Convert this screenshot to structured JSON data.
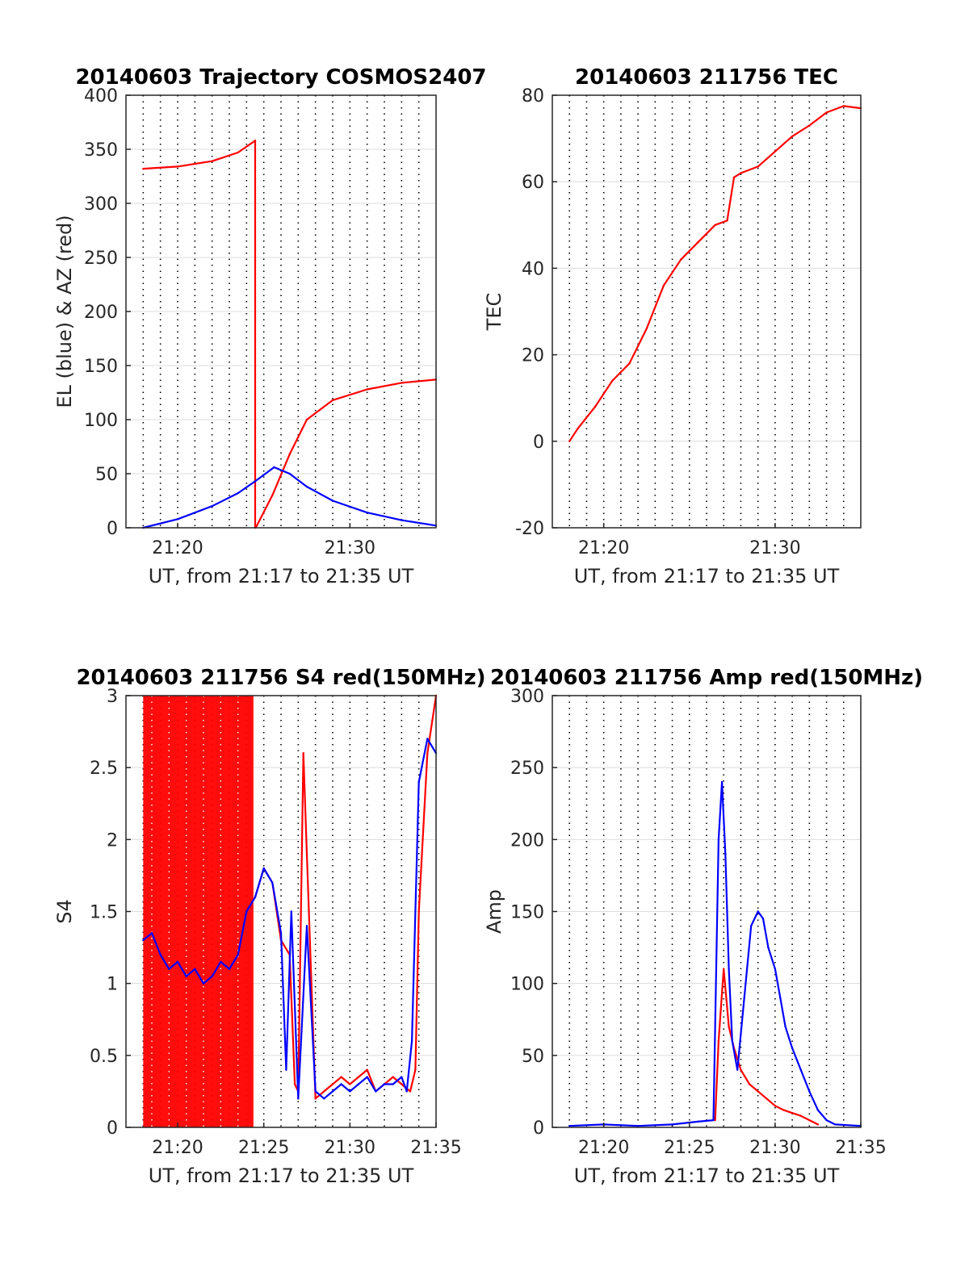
{
  "colors": {
    "red": "#ff0000",
    "blue": "#0000ff",
    "axis": "#262626",
    "grid": "#dcdcdc"
  },
  "chart_data": [
    {
      "id": "trajectory",
      "type": "line",
      "title": "20140603 Trajectory COSMOS2407",
      "xlabel": "UT, from 21:17 to 21:35 UT",
      "ylabel": "EL (blue) & AZ (red)",
      "x_unit": "minutes after 21:17",
      "xlim": [
        0,
        18
      ],
      "ylim": [
        0,
        400
      ],
      "xticks": [
        {
          "v": 3,
          "label": "21:20"
        },
        {
          "v": 13,
          "label": "21:30"
        }
      ],
      "yticks": [
        0,
        50,
        100,
        150,
        200,
        250,
        300,
        350,
        400
      ],
      "grid": true,
      "series": [
        {
          "color": "red",
          "x": [
            1,
            3,
            5,
            6.5,
            7.5,
            7.5,
            7.6,
            8.5,
            9.5,
            10.5,
            12,
            14,
            16,
            18
          ],
          "y": [
            332,
            334,
            339,
            347,
            358,
            0,
            2,
            30,
            68,
            100,
            118,
            128,
            134,
            137
          ]
        },
        {
          "color": "blue",
          "x": [
            1,
            3,
            5,
            6.5,
            7.5,
            8.6,
            9.5,
            10.5,
            12,
            14,
            16,
            18
          ],
          "y": [
            0,
            8,
            20,
            32,
            43,
            56,
            50,
            38,
            25,
            14,
            7,
            2
          ]
        }
      ]
    },
    {
      "id": "tec",
      "type": "line",
      "title": "20140603 211756 TEC",
      "xlabel": "UT, from 21:17 to 21:35 UT",
      "ylabel": "TEC",
      "x_unit": "minutes after 21:17",
      "xlim": [
        0,
        18
      ],
      "ylim": [
        -20,
        80
      ],
      "xticks": [
        {
          "v": 3,
          "label": "21:20"
        },
        {
          "v": 13,
          "label": "21:30"
        }
      ],
      "yticks": [
        -20,
        0,
        20,
        40,
        60,
        80
      ],
      "grid": true,
      "series": [
        {
          "color": "red",
          "x": [
            1,
            1.5,
            2.5,
            3.5,
            4.5,
            5.5,
            6.5,
            7.5,
            8.5,
            9.5,
            10.2,
            10.6,
            11,
            12,
            13,
            14,
            15,
            16,
            17,
            18
          ],
          "y": [
            0,
            3,
            8,
            14,
            18,
            26,
            36,
            42,
            46,
            50,
            51,
            61,
            62,
            63.5,
            67,
            70.5,
            73,
            76,
            77.5,
            77
          ]
        }
      ]
    },
    {
      "id": "s4",
      "type": "line",
      "title": "20140603 211756 S4 red(150MHz)",
      "xlabel": "UT, from 21:17 to 21:35 UT",
      "ylabel": "S4",
      "x_unit": "minutes after 21:17",
      "xlim": [
        0,
        18
      ],
      "ylim": [
        0,
        3
      ],
      "xticks": [
        {
          "v": 3,
          "label": "21:20"
        },
        {
          "v": 8,
          "label": "21:25"
        },
        {
          "v": 13,
          "label": "21:30"
        },
        {
          "v": 18,
          "label": "21:35"
        }
      ],
      "yticks": [
        0,
        0.5,
        1,
        1.5,
        2,
        2.5,
        3
      ],
      "grid": true,
      "red_band": [
        1,
        7.4
      ],
      "series": [
        {
          "color": "red",
          "x": [
            7.5,
            8,
            8.5,
            9,
            9.5,
            9.8,
            10,
            10.3,
            10.5,
            11,
            11.5,
            12,
            12.5,
            13,
            13.5,
            14,
            14.5,
            15,
            15.5,
            16,
            16.5,
            16.8,
            17,
            17.5,
            18
          ],
          "y": [
            1.6,
            1.8,
            1.7,
            1.3,
            1.2,
            0.3,
            0.25,
            2.6,
            1.9,
            0.2,
            0.25,
            0.3,
            0.35,
            0.3,
            0.35,
            0.4,
            0.25,
            0.3,
            0.35,
            0.3,
            0.25,
            0.4,
            1.5,
            2.6,
            3
          ]
        },
        {
          "color": "blue",
          "x": [
            1,
            1.5,
            2,
            2.5,
            3,
            3.5,
            4,
            4.5,
            5,
            5.5,
            6,
            6.5,
            7,
            7.5,
            8,
            8.5,
            9,
            9.3,
            9.6,
            10,
            10.5,
            11,
            11.5,
            12,
            12.5,
            13,
            13.5,
            14,
            14.5,
            15,
            15.5,
            16,
            16.3,
            16.6,
            17,
            17.5,
            18
          ],
          "y": [
            1.3,
            1.35,
            1.2,
            1.1,
            1.15,
            1.05,
            1.1,
            1.0,
            1.05,
            1.15,
            1.1,
            1.2,
            1.5,
            1.6,
            1.8,
            1.7,
            1.35,
            0.4,
            1.5,
            0.2,
            1.4,
            0.25,
            0.2,
            0.25,
            0.3,
            0.25,
            0.3,
            0.35,
            0.25,
            0.3,
            0.3,
            0.35,
            0.25,
            0.6,
            2.4,
            2.7,
            2.6
          ]
        }
      ]
    },
    {
      "id": "amp",
      "type": "line",
      "title": "20140603 211756 Amp red(150MHz)",
      "xlabel": "UT, from 21:17 to 21:35 UT",
      "ylabel": "Amp",
      "x_unit": "minutes after 21:17",
      "xlim": [
        0,
        18
      ],
      "ylim": [
        0,
        300
      ],
      "xticks": [
        {
          "v": 3,
          "label": "21:20"
        },
        {
          "v": 8,
          "label": "21:25"
        },
        {
          "v": 13,
          "label": "21:30"
        },
        {
          "v": 18,
          "label": "21:35"
        }
      ],
      "yticks": [
        0,
        50,
        100,
        150,
        200,
        250,
        300
      ],
      "grid": true,
      "series": [
        {
          "color": "red",
          "x": [
            9.5,
            9.7,
            10,
            10.3,
            10.6,
            11,
            11.5,
            12,
            12.5,
            13,
            13.5,
            14,
            14.5,
            15,
            15.5
          ],
          "y": [
            5,
            60,
            110,
            70,
            55,
            40,
            30,
            25,
            20,
            15,
            12,
            10,
            8,
            5,
            2
          ]
        },
        {
          "color": "blue",
          "x": [
            1,
            3,
            5,
            7,
            8.5,
            9.4,
            9.7,
            9.9,
            10.1,
            10.3,
            10.5,
            10.8,
            11.2,
            11.6,
            12,
            12.3,
            12.6,
            13,
            13.3,
            13.6,
            14,
            14.5,
            15,
            15.5,
            16,
            16.5,
            18
          ],
          "y": [
            1,
            2,
            1,
            2,
            4,
            5,
            200,
            240,
            190,
            110,
            60,
            40,
            90,
            140,
            150,
            145,
            125,
            110,
            90,
            70,
            55,
            40,
            25,
            12,
            5,
            2,
            1
          ]
        }
      ]
    }
  ]
}
